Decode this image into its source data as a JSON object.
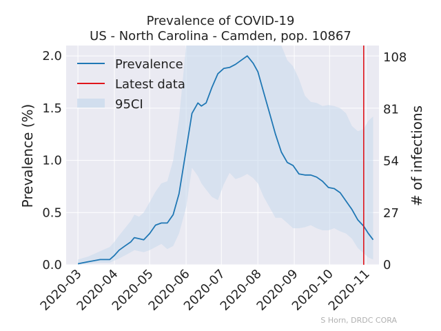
{
  "colors": {
    "plot_bg": "#eaeaf2",
    "grid": "#ffffff",
    "line": "#1f77b4",
    "ci": "#c6d8ec",
    "latest": "#e0151b"
  },
  "chart_data": {
    "type": "line",
    "title_line1": "Prevalence of COVID-19",
    "title_line2": "US - North Carolina - Camden, pop. 10867",
    "ylabel": "Prevalence (%)",
    "y2label": "# of infections",
    "credit": "S Horn, DRDC CORA",
    "xlim": [
      "2020-02-20",
      "2020-11-12"
    ],
    "ylim": [
      0,
      2.1
    ],
    "y2lim": [
      0,
      114.1
    ],
    "x_ticks": [
      "2020-03",
      "2020-04",
      "2020-05",
      "2020-06",
      "2020-07",
      "2020-08",
      "2020-09",
      "2020-10",
      "2020-11"
    ],
    "y_ticks": [
      0.0,
      0.5,
      1.0,
      1.5,
      2.0
    ],
    "y_tick_labels": [
      "0.0",
      "0.5",
      "1.0",
      "1.5",
      "2.0"
    ],
    "y2_ticks": [
      0,
      27,
      54,
      81,
      108
    ],
    "y2_tick_labels": [
      "0",
      "27",
      "54",
      "81",
      "108"
    ],
    "latest_data_date": "2020-10-30",
    "legend": {
      "placement": "upper-left",
      "prevalence": "Prevalence",
      "latest": "Latest data",
      "ci": "95CI"
    },
    "series": [
      {
        "name": "Prevalence",
        "x": [
          "2020-03-01",
          "2020-03-10",
          "2020-03-20",
          "2020-03-28",
          "2020-04-01",
          "2020-04-05",
          "2020-04-10",
          "2020-04-15",
          "2020-04-18",
          "2020-04-22",
          "2020-04-26",
          "2020-05-01",
          "2020-05-06",
          "2020-05-11",
          "2020-05-16",
          "2020-05-21",
          "2020-05-26",
          "2020-06-01",
          "2020-06-06",
          "2020-06-11",
          "2020-06-14",
          "2020-06-18",
          "2020-06-23",
          "2020-06-28",
          "2020-07-03",
          "2020-07-08",
          "2020-07-13",
          "2020-07-18",
          "2020-07-23",
          "2020-07-28",
          "2020-08-01",
          "2020-08-06",
          "2020-08-11",
          "2020-08-16",
          "2020-08-21",
          "2020-08-26",
          "2020-08-31",
          "2020-09-05",
          "2020-09-10",
          "2020-09-15",
          "2020-09-20",
          "2020-09-25",
          "2020-09-30",
          "2020-10-05",
          "2020-10-10",
          "2020-10-15",
          "2020-10-20",
          "2020-10-25",
          "2020-10-30",
          "2020-11-03",
          "2020-11-07"
        ],
        "values": [
          0.01,
          0.03,
          0.05,
          0.05,
          0.09,
          0.14,
          0.18,
          0.22,
          0.26,
          0.25,
          0.24,
          0.3,
          0.38,
          0.4,
          0.4,
          0.48,
          0.68,
          1.1,
          1.45,
          1.55,
          1.52,
          1.55,
          1.7,
          1.83,
          1.88,
          1.89,
          1.92,
          1.96,
          2.0,
          1.93,
          1.85,
          1.65,
          1.45,
          1.25,
          1.08,
          0.98,
          0.95,
          0.87,
          0.86,
          0.86,
          0.84,
          0.8,
          0.74,
          0.73,
          0.69,
          0.61,
          0.53,
          0.43,
          0.37,
          0.3,
          0.24
        ]
      },
      {
        "name": "95CI",
        "x": [
          "2020-03-01",
          "2020-03-10",
          "2020-03-20",
          "2020-03-28",
          "2020-04-01",
          "2020-04-05",
          "2020-04-10",
          "2020-04-15",
          "2020-04-18",
          "2020-04-22",
          "2020-04-26",
          "2020-05-01",
          "2020-05-06",
          "2020-05-11",
          "2020-05-16",
          "2020-05-21",
          "2020-05-26",
          "2020-06-01",
          "2020-06-06",
          "2020-06-11",
          "2020-06-14",
          "2020-06-18",
          "2020-06-23",
          "2020-06-28",
          "2020-07-03",
          "2020-07-08",
          "2020-07-13",
          "2020-07-18",
          "2020-07-23",
          "2020-07-28",
          "2020-08-01",
          "2020-08-06",
          "2020-08-11",
          "2020-08-16",
          "2020-08-21",
          "2020-08-26",
          "2020-08-31",
          "2020-09-05",
          "2020-09-10",
          "2020-09-15",
          "2020-09-20",
          "2020-09-25",
          "2020-09-30",
          "2020-10-05",
          "2020-10-10",
          "2020-10-15",
          "2020-10-20",
          "2020-10-25",
          "2020-10-30",
          "2020-11-03",
          "2020-11-07"
        ],
        "lower": [
          0.0,
          0.01,
          0.02,
          0.02,
          0.04,
          0.06,
          0.09,
          0.12,
          0.14,
          0.13,
          0.12,
          0.14,
          0.17,
          0.2,
          0.15,
          0.18,
          0.3,
          0.55,
          0.93,
          0.85,
          0.78,
          0.72,
          0.65,
          0.62,
          0.77,
          0.88,
          0.82,
          0.84,
          0.87,
          0.83,
          0.78,
          0.65,
          0.55,
          0.45,
          0.45,
          0.4,
          0.35,
          0.35,
          0.36,
          0.38,
          0.35,
          0.33,
          0.33,
          0.35,
          0.32,
          0.3,
          0.25,
          0.16,
          0.11,
          0.07,
          0.05
        ],
        "upper": [
          0.05,
          0.08,
          0.13,
          0.17,
          0.22,
          0.28,
          0.35,
          0.42,
          0.48,
          0.46,
          0.5,
          0.6,
          0.7,
          0.78,
          0.8,
          1.0,
          1.4,
          2.1,
          2.1,
          2.1,
          2.1,
          2.1,
          2.1,
          2.1,
          2.1,
          2.1,
          2.1,
          2.1,
          2.1,
          2.1,
          2.1,
          2.1,
          2.1,
          2.1,
          2.1,
          1.96,
          1.9,
          1.78,
          1.62,
          1.56,
          1.55,
          1.52,
          1.53,
          1.52,
          1.5,
          1.45,
          1.33,
          1.28,
          1.3,
          1.38,
          1.42
        ]
      }
    ]
  }
}
